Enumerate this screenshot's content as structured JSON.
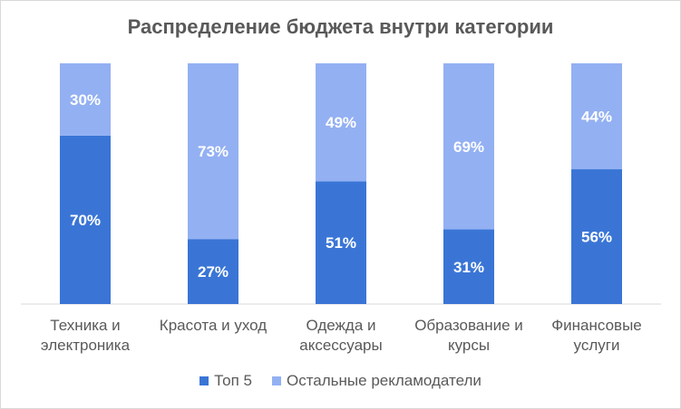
{
  "chart_data": {
    "type": "bar",
    "stacked": true,
    "title": "Распределение бюджета внутри категории",
    "categories": [
      [
        "Техника и",
        "электроника"
      ],
      [
        "Красота и уход"
      ],
      [
        "Одежда и",
        "аксессуары"
      ],
      [
        "Образование и",
        "курсы"
      ],
      [
        "Финансовые",
        "услуги"
      ]
    ],
    "series": [
      {
        "name": "Топ 5",
        "values": [
          70,
          27,
          51,
          31,
          56
        ],
        "labels": [
          "70%",
          "27%",
          "51%",
          "31%",
          "56%"
        ],
        "color": "#3a75d6"
      },
      {
        "name": "Остальные рекламодатели",
        "values": [
          30,
          73,
          49,
          69,
          44
        ],
        "labels": [
          "30%",
          "73%",
          "49%",
          "69%",
          "44%"
        ],
        "color": "#93b0f3"
      }
    ],
    "ylim": [
      0,
      100
    ],
    "grid": false,
    "legend_position": "bottom"
  }
}
